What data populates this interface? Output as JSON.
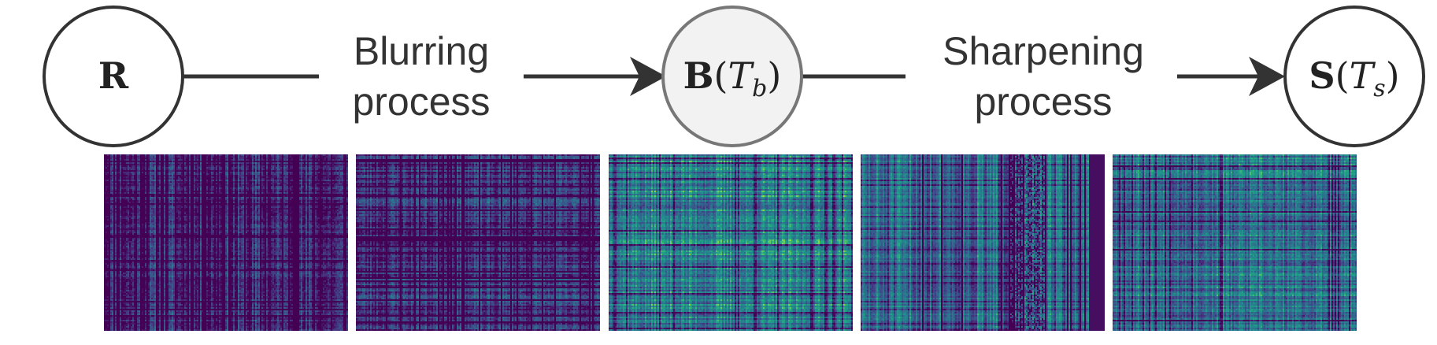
{
  "nodes": [
    {
      "id": "R",
      "main": "R",
      "sub": "",
      "style": "plain"
    },
    {
      "id": "B",
      "main": "B",
      "arg": "T",
      "sub": "b",
      "style": "highlighted"
    },
    {
      "id": "S",
      "main": "S",
      "arg": "T",
      "sub": "s",
      "style": "plain"
    }
  ],
  "labels": {
    "blur_line1": "Blurring",
    "blur_line2": "process",
    "sharp_line1": "Sharpening",
    "sharp_line2": "process"
  },
  "colors": {
    "edge": "#333333",
    "node_fill_highlight": "#f2f2f2",
    "node_stroke_highlight": "#777777",
    "heatmap_palette": "viridis"
  },
  "heatmaps": [
    {
      "id": "heatmap-1",
      "base": 0.08,
      "col_var": 0.55,
      "row_var": 0.2,
      "noise": 0.2,
      "seed": 11
    },
    {
      "id": "heatmap-2",
      "base": 0.16,
      "col_var": 0.35,
      "row_var": 0.35,
      "noise": 0.2,
      "seed": 23
    },
    {
      "id": "heatmap-3",
      "base": 0.5,
      "col_var": 0.35,
      "row_var": 0.4,
      "noise": 0.18,
      "seed": 37
    },
    {
      "id": "heatmap-4",
      "base": 0.38,
      "col_var": 0.55,
      "row_var": 0.22,
      "noise": 0.15,
      "seed": 51
    },
    {
      "id": "heatmap-5",
      "base": 0.42,
      "col_var": 0.35,
      "row_var": 0.38,
      "noise": 0.18,
      "seed": 67
    }
  ]
}
